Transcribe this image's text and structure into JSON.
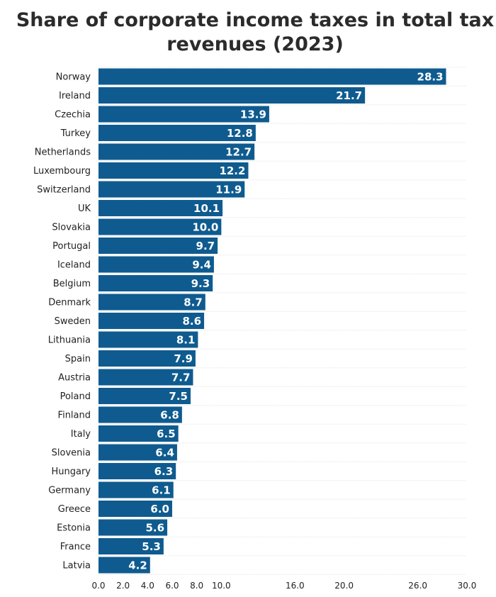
{
  "chart_data": {
    "type": "bar",
    "orientation": "horizontal",
    "title": "Share of corporate income taxes in total tax revenues (2023)",
    "categories": [
      "Norway",
      "Ireland",
      "Czechia",
      "Turkey",
      "Netherlands",
      "Luxembourg",
      "Switzerland",
      "UK",
      "Slovakia",
      "Portugal",
      "Iceland",
      "Belgium",
      "Denmark",
      "Sweden",
      "Lithuania",
      "Spain",
      "Austria",
      "Poland",
      "Finland",
      "Italy",
      "Slovenia",
      "Hungary",
      "Germany",
      "Greece",
      "Estonia",
      "France",
      "Latvia"
    ],
    "values": [
      28.3,
      21.7,
      13.9,
      12.8,
      12.7,
      12.2,
      11.9,
      10.1,
      10.0,
      9.7,
      9.4,
      9.3,
      8.7,
      8.6,
      8.1,
      7.9,
      7.7,
      7.5,
      6.8,
      6.5,
      6.4,
      6.3,
      6.1,
      6.0,
      5.6,
      5.3,
      4.2
    ],
    "data_labels": [
      "28.3",
      "21.7",
      "13.9",
      "12.8",
      "12.7",
      "12.2",
      "11.9",
      "10.1",
      "10.0",
      "9.7",
      "9.4",
      "9.3",
      "8.7",
      "8.6",
      "8.1",
      "7.9",
      "7.7",
      "7.5",
      "6.8",
      "6.5",
      "6.4",
      "6.3",
      "6.1",
      "6.0",
      "5.6",
      "5.3",
      "4.2"
    ],
    "x_ticks": [
      0,
      2,
      4,
      6,
      8,
      10,
      16,
      20,
      26,
      30
    ],
    "x_tick_labels": [
      "0.0",
      "2.0",
      "4.0",
      "6.0",
      "8.0",
      "10.0",
      "16.0",
      "20.0",
      "26.0",
      "30.0"
    ],
    "xlim": [
      0,
      30
    ],
    "xlabel": "",
    "ylabel": "",
    "grid": true,
    "legend": "none",
    "colors": {
      "bar": "#0f5b8f",
      "data_label": "#ffffff",
      "grid": "#e6e6e6",
      "text": "#222222"
    }
  }
}
